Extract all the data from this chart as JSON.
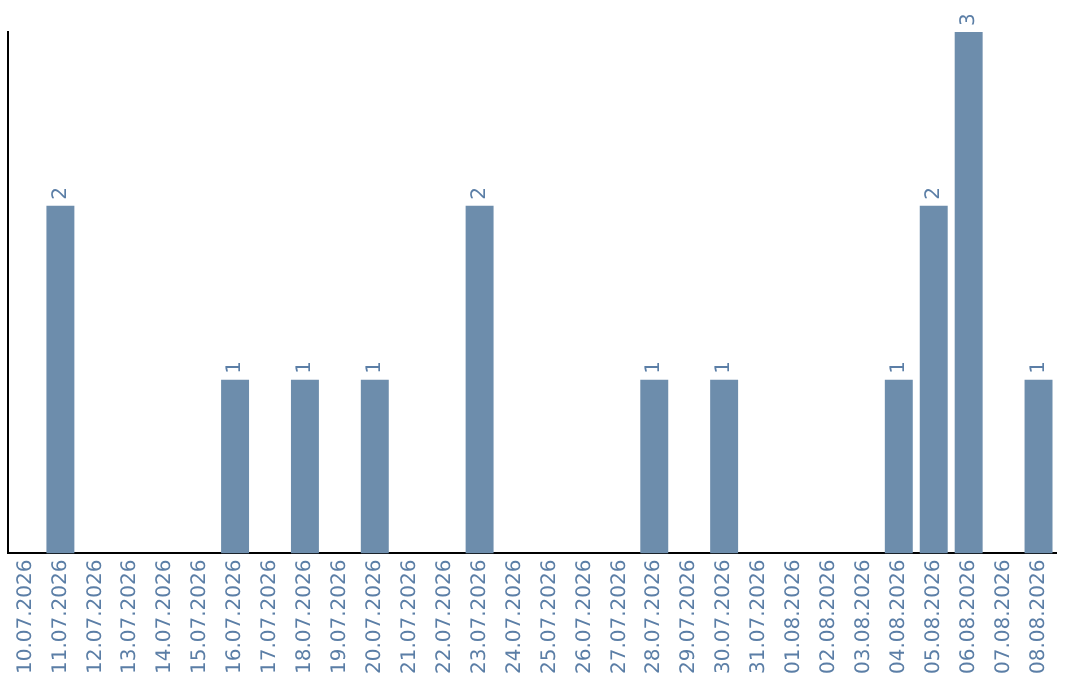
{
  "chart_data": {
    "type": "bar",
    "categories": [
      "10.07.2026",
      "11.07.2026",
      "12.07.2026",
      "13.07.2026",
      "14.07.2026",
      "15.07.2026",
      "16.07.2026",
      "17.07.2026",
      "18.07.2026",
      "19.07.2026",
      "20.07.2026",
      "21.07.2026",
      "22.07.2026",
      "23.07.2026",
      "24.07.2026",
      "25.07.2026",
      "26.07.2026",
      "27.07.2026",
      "28.07.2026",
      "29.07.2026",
      "30.07.2026",
      "31.07.2026",
      "01.08.2026",
      "02.08.2026",
      "03.08.2026",
      "04.08.2026",
      "05.08.2026",
      "06.08.2026",
      "07.08.2026",
      "08.08.2026"
    ],
    "values": [
      0,
      2,
      0,
      0,
      0,
      0,
      1,
      0,
      1,
      0,
      1,
      0,
      0,
      2,
      0,
      0,
      0,
      0,
      1,
      0,
      1,
      0,
      0,
      0,
      0,
      1,
      2,
      3,
      0,
      1
    ],
    "value_labels": [
      null,
      "2",
      null,
      null,
      null,
      null,
      "1",
      null,
      "1",
      null,
      "1",
      null,
      null,
      "2",
      null,
      null,
      null,
      null,
      "1",
      null,
      "1",
      null,
      null,
      null,
      null,
      "1",
      "2",
      "3",
      null,
      "1"
    ],
    "color": "#6d8dac",
    "tick_labels": "x",
    "grid": false,
    "legend": false
  }
}
